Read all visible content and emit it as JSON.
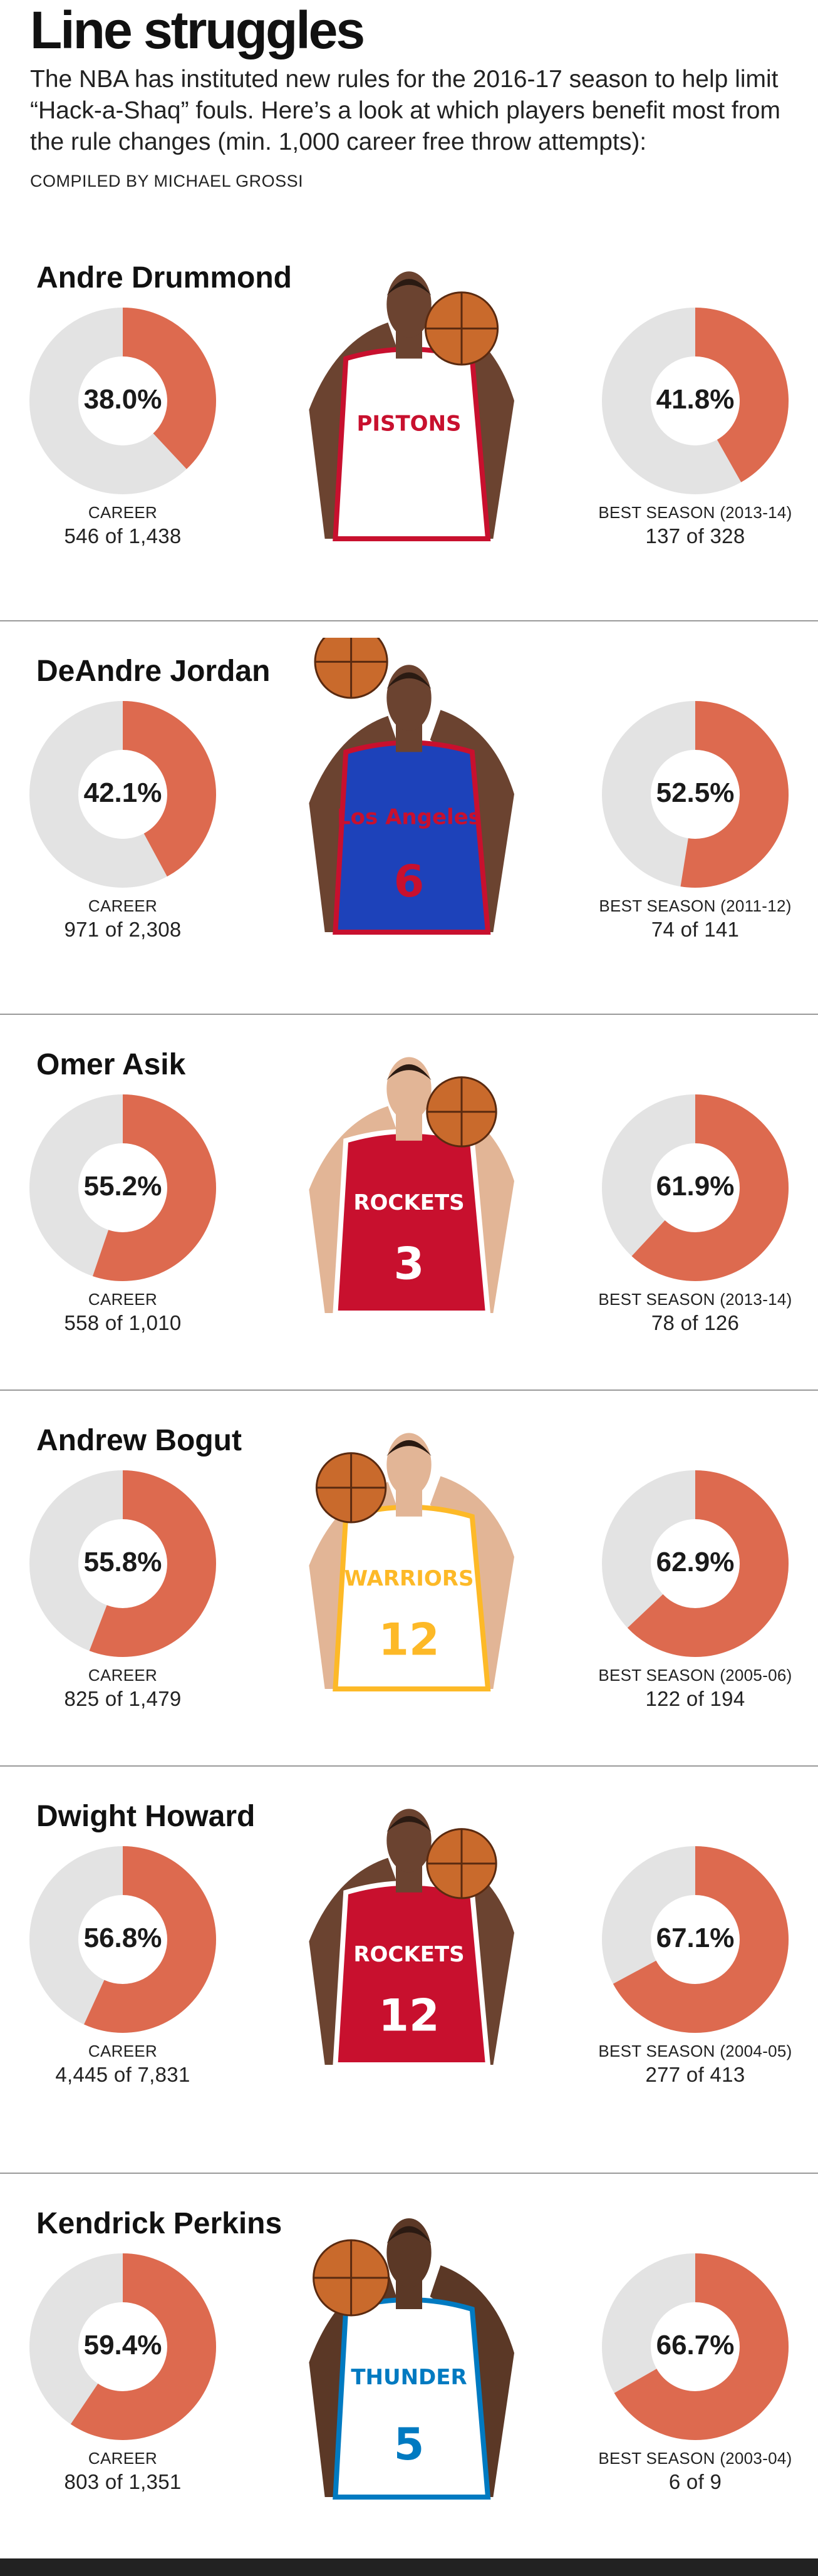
{
  "header": {
    "title": "Line struggles",
    "intro": "The NBA has instituted new rules for the 2016-17 season to help limit “Hack-a-Shaq” fouls. Here’s a look at which players benefit most from the rule changes (min. 1,000 career free throw attempts):",
    "credit": "COMPILED BY MICHAEL GROSSI"
  },
  "colors": {
    "accent": "#dd6a4f",
    "ring_bg": "#e3e3e3",
    "rule": "#9a9a9a"
  },
  "chart_data": {
    "type": "donut",
    "title": "Line struggles",
    "players": [
      {
        "name": "Andre Drummond",
        "career": {
          "pct": 38.0,
          "label": "38.0%",
          "caption": "CAREER",
          "made_of": "546 of 1,438"
        },
        "best": {
          "pct": 41.8,
          "label": "41.8%",
          "caption": "BEST SEASON (2013-14)",
          "made_of": "137 of 328"
        }
      },
      {
        "name": "DeAndre Jordan",
        "career": {
          "pct": 42.1,
          "label": "42.1%",
          "caption": "CAREER",
          "made_of": "971 of 2,308"
        },
        "best": {
          "pct": 52.5,
          "label": "52.5%",
          "caption": "BEST SEASON (2011-12)",
          "made_of": "74 of 141"
        }
      },
      {
        "name": "Omer Asik",
        "career": {
          "pct": 55.2,
          "label": "55.2%",
          "caption": "CAREER",
          "made_of": "558 of 1,010"
        },
        "best": {
          "pct": 61.9,
          "label": "61.9%",
          "caption": "BEST SEASON (2013-14)",
          "made_of": "78 of 126"
        }
      },
      {
        "name": "Andrew Bogut",
        "career": {
          "pct": 55.8,
          "label": "55.8%",
          "caption": "CAREER",
          "made_of": "825 of 1,479"
        },
        "best": {
          "pct": 62.9,
          "label": "62.9%",
          "caption": "BEST SEASON (2005-06)",
          "made_of": "122 of 194"
        }
      },
      {
        "name": "Dwight Howard",
        "career": {
          "pct": 56.8,
          "label": "56.8%",
          "caption": "CAREER",
          "made_of": "4,445 of 7,831"
        },
        "best": {
          "pct": 67.1,
          "label": "67.1%",
          "caption": "BEST SEASON (2004-05)",
          "made_of": "277 of 413"
        }
      },
      {
        "name": "Kendrick Perkins",
        "career": {
          "pct": 59.4,
          "label": "59.4%",
          "caption": "CAREER",
          "made_of": "803 of 1,351"
        },
        "best": {
          "pct": 66.7,
          "label": "66.7%",
          "caption": "BEST SEASON (2003-04)",
          "made_of": "6 of 9"
        }
      }
    ]
  },
  "photos": [
    {
      "jersey_color": "#ffffff",
      "trim_color": "#c8102e",
      "skin": "#6b4330",
      "jersey_text": "PISTONS",
      "number": ""
    },
    {
      "jersey_color": "#1d42ba",
      "trim_color": "#c8102e",
      "skin": "#6b4330",
      "jersey_text": "Los Angeles",
      "number": "6"
    },
    {
      "jersey_color": "#c8102e",
      "trim_color": "#ffffff",
      "skin": "#e2b596",
      "jersey_text": "ROCKETS",
      "number": "3"
    },
    {
      "jersey_color": "#ffffff",
      "trim_color": "#fdb927",
      "skin": "#e2b596",
      "jersey_text": "WARRIORS",
      "number": "12"
    },
    {
      "jersey_color": "#c8102e",
      "trim_color": "#ffffff",
      "skin": "#6b4330",
      "jersey_text": "ROCKETS",
      "number": "12"
    },
    {
      "jersey_color": "#ffffff",
      "trim_color": "#007ac1",
      "skin": "#5b3826",
      "jersey_text": "THUNDER",
      "number": "5"
    }
  ]
}
